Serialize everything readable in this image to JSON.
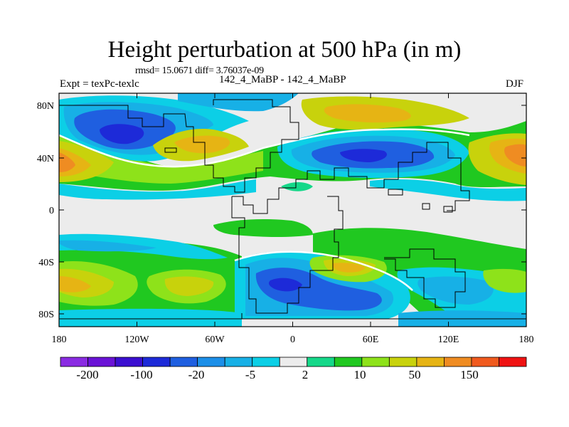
{
  "title": "Height perturbation at 500 hPa (in m)",
  "stats": "rmsd= 15.0671 diff= 3.76037e-09",
  "left_label": "Expt = texPc-texlc",
  "center_label": "142_4_MaBP - 142_4_MaBP",
  "right_label": "DJF",
  "axes": {
    "x_ticks": [
      "180",
      "120W",
      "60W",
      "0",
      "60E",
      "120E",
      "180"
    ],
    "y_ticks": [
      "80N",
      "40N",
      "0",
      "40S",
      "80S"
    ],
    "x_range_deg": [
      -180,
      180
    ],
    "y_range_deg": [
      -90,
      90
    ]
  },
  "colorbar": {
    "colors": [
      "#8a2be2",
      "#6a12d6",
      "#3b0fd0",
      "#1d2ad8",
      "#1f5fe0",
      "#1c8fe8",
      "#17b0e6",
      "#0ccfe6",
      "#ececec",
      "#15d889",
      "#20c820",
      "#8ee21a",
      "#c8d20c",
      "#e6b414",
      "#ef8c22",
      "#f05a1e",
      "#ef1212"
    ],
    "labels": [
      "-200",
      "-100",
      "-20",
      "-5",
      "2",
      "10",
      "50",
      "150"
    ]
  },
  "colors": {
    "background_field": "#ececec",
    "land_outline": "#000000"
  }
}
